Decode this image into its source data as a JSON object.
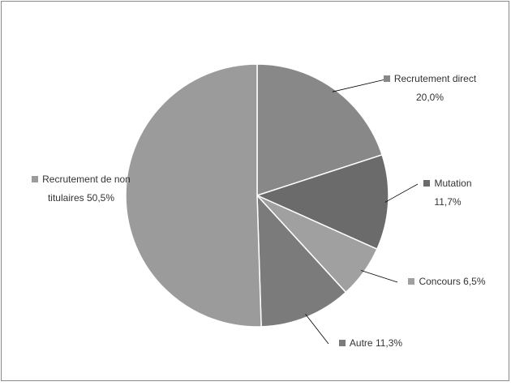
{
  "chart_data": {
    "type": "pie",
    "categories": [
      "Recrutement direct",
      "Mutation",
      "Concours",
      "Autre",
      "Recrutement de non titulaires"
    ],
    "values": [
      20.0,
      11.7,
      6.5,
      11.3,
      50.5
    ],
    "value_labels": [
      "20,0%",
      "11,7%",
      "6,5%",
      "11,3%",
      "50,5%"
    ],
    "colors": [
      "#888888",
      "#6b6b6b",
      "#a0a0a0",
      "#7b7b7b",
      "#9b9b9b"
    ]
  }
}
